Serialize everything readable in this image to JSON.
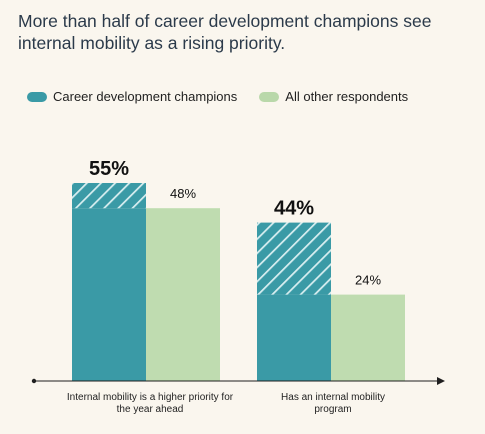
{
  "header": {
    "title": "More than half of career development champions see internal mobility as a rising priority."
  },
  "legend": [
    {
      "name": "Career development champions",
      "color": "#3a9aa6"
    },
    {
      "name": "All other respondents",
      "color": "#b9d8aa"
    }
  ],
  "colors": {
    "champions": "#3a9aa6",
    "others": "#bfdcb0",
    "hatch_line": "#d8eef0",
    "axis": "#1f1f1f",
    "background": "#faf6ee"
  },
  "chart_data": {
    "type": "bar",
    "categories": [
      [
        "Internal mobility is a higher priority for",
        "the year ahead"
      ],
      [
        "Has an internal mobility",
        "program"
      ]
    ],
    "series": [
      {
        "name": "Career development champions",
        "values": [
          55,
          44
        ],
        "labels": [
          "55%",
          "44%"
        ]
      },
      {
        "name": "All other respondents",
        "values": [
          48,
          24
        ],
        "labels": [
          "48%",
          "24%"
        ]
      }
    ],
    "ylim": [
      0,
      60
    ],
    "grid": false,
    "legend_position": "top-left"
  }
}
